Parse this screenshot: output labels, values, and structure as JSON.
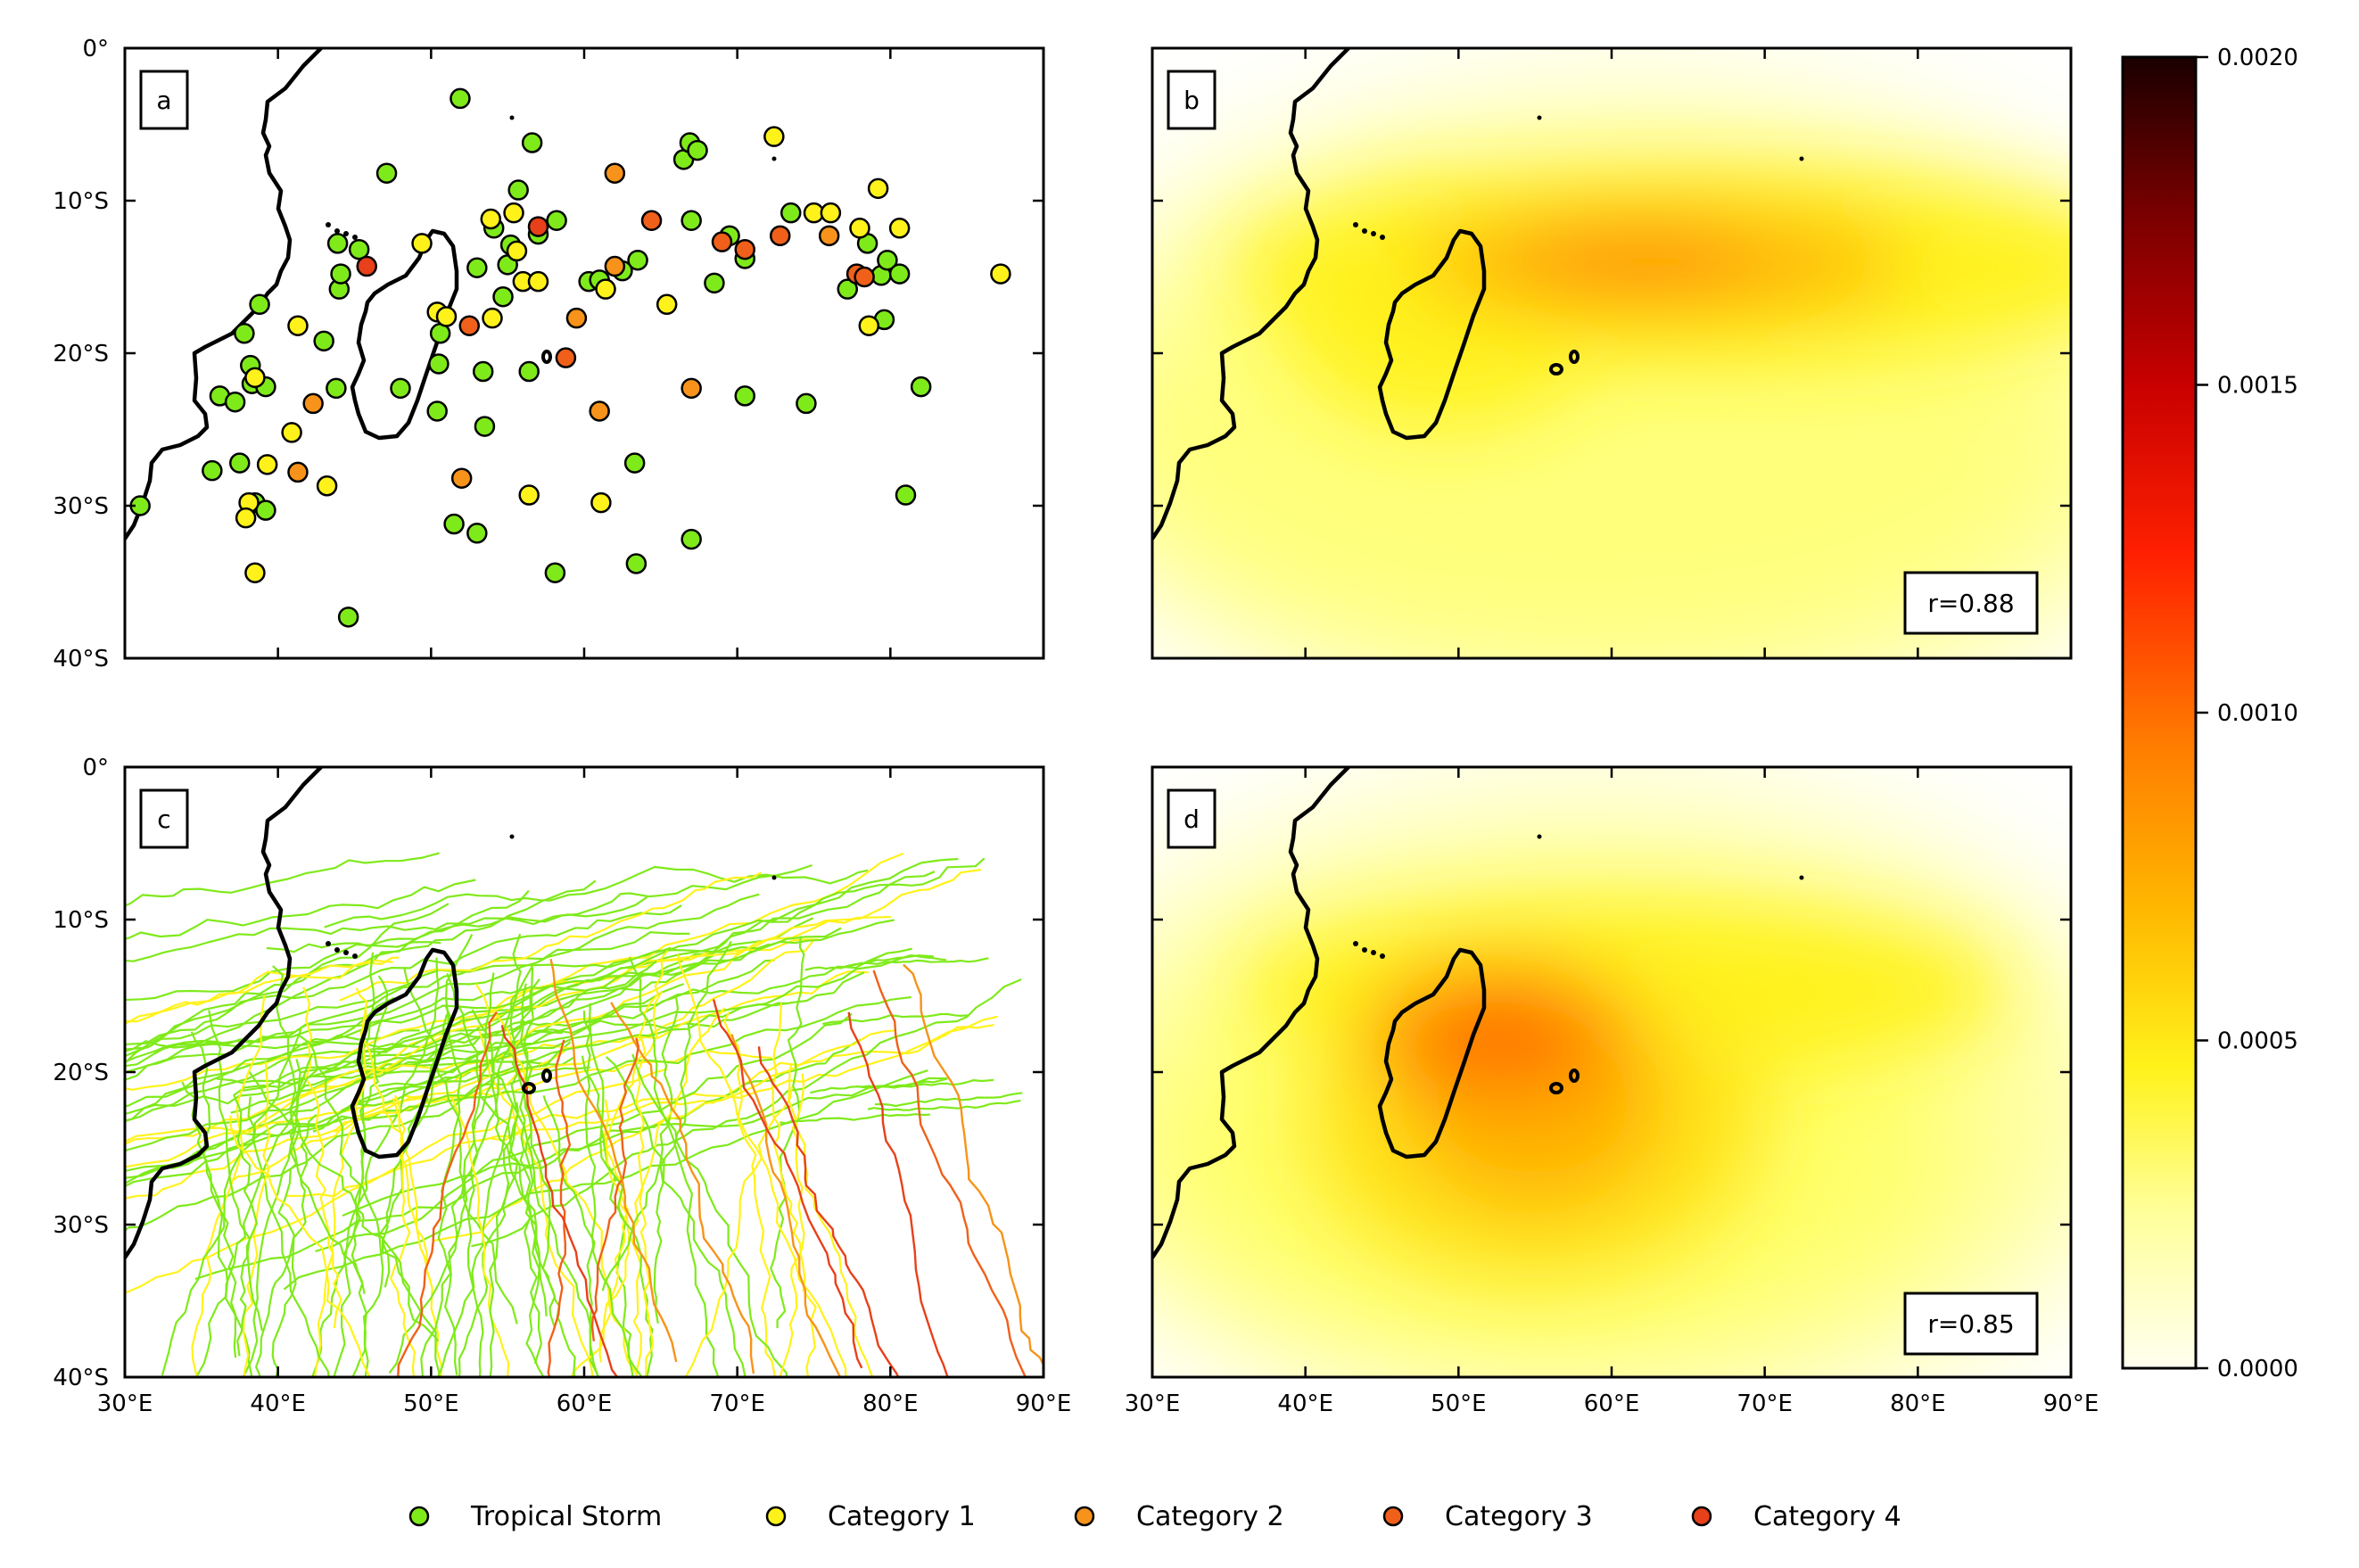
{
  "colors": {
    "tropical_storm": "#7FEA1A",
    "category_1": "#FFF21A",
    "category_2": "#F7931A",
    "category_3": "#F0601A",
    "category_4": "#E8401A",
    "coast": "#000000"
  },
  "axes": {
    "y_labels": [
      "0°",
      "10°S",
      "20°S",
      "30°S",
      "40°S"
    ],
    "x_labels": [
      "30°E",
      "40°E",
      "50°E",
      "60°E",
      "70°E",
      "80°E",
      "90°E"
    ],
    "lon_range": [
      30,
      90
    ],
    "lat_range": [
      0,
      -40
    ]
  },
  "panels": {
    "a": {
      "label": "a"
    },
    "b": {
      "label": "b",
      "r_text": "r=0.88"
    },
    "c": {
      "label": "c"
    },
    "d": {
      "label": "d",
      "r_text": "r=0.85"
    }
  },
  "colorbar": {
    "ticks": [
      "0.0020",
      "0.0015",
      "0.0010",
      "0.0005",
      "0.0000"
    ],
    "range": [
      0,
      0.002
    ]
  },
  "legend": [
    {
      "label": "Tropical Storm",
      "category": "ts"
    },
    {
      "label": "Category 1",
      "category": "c1"
    },
    {
      "label": "Category 2",
      "category": "c2"
    },
    {
      "label": "Category 3",
      "category": "c3"
    },
    {
      "label": "Category 4",
      "category": "c4"
    }
  ],
  "chart_data": {
    "type": "scatter",
    "points_lon_lat_cat": [
      [
        31,
        -30,
        "ts"
      ],
      [
        35.7,
        -27.7,
        "ts"
      ],
      [
        36.2,
        -22.8,
        "ts"
      ],
      [
        37.2,
        -23.2,
        "ts"
      ],
      [
        37.5,
        -27.2,
        "ts"
      ],
      [
        37.8,
        -18.7,
        "ts"
      ],
      [
        38.2,
        -20.8,
        "ts"
      ],
      [
        38.3,
        -22,
        "ts"
      ],
      [
        38.5,
        -29.8,
        "ts"
      ],
      [
        38.8,
        -16.8,
        "ts"
      ],
      [
        39.2,
        -30.3,
        "ts"
      ],
      [
        43.9,
        -12.8,
        "ts"
      ],
      [
        44,
        -15.8,
        "ts"
      ],
      [
        44.1,
        -14.8,
        "ts"
      ],
      [
        44.6,
        -37.3,
        "ts"
      ],
      [
        45.3,
        -13.2,
        "ts"
      ],
      [
        47.1,
        -8.2,
        "ts"
      ],
      [
        48,
        -22.3,
        "ts"
      ],
      [
        50.5,
        -20.7,
        "ts"
      ],
      [
        50.4,
        -23.8,
        "ts"
      ],
      [
        51.5,
        -31.2,
        "ts"
      ],
      [
        51.9,
        -3.3,
        "ts"
      ],
      [
        53,
        -31.8,
        "ts"
      ],
      [
        53.5,
        -24.8,
        "ts"
      ],
      [
        53.4,
        -21.2,
        "ts"
      ],
      [
        55.7,
        -9.3,
        "ts"
      ],
      [
        55.2,
        -12.9,
        "ts"
      ],
      [
        56.6,
        -6.2,
        "ts"
      ],
      [
        56.4,
        -21.2,
        "ts"
      ],
      [
        58.1,
        -34.4,
        "ts"
      ],
      [
        58.2,
        -11.3,
        "ts"
      ],
      [
        60.3,
        -15.3,
        "ts"
      ],
      [
        63.3,
        -27.2,
        "ts"
      ],
      [
        63.4,
        -33.8,
        "ts"
      ],
      [
        63.5,
        -13.9,
        "ts"
      ],
      [
        66.5,
        -7.3,
        "ts"
      ],
      [
        66.9,
        -6.2,
        "ts"
      ],
      [
        67.4,
        -6.7,
        "ts"
      ],
      [
        67,
        -11.3,
        "ts"
      ],
      [
        67,
        -32.2,
        "ts"
      ],
      [
        68.5,
        -15.4,
        "ts"
      ],
      [
        69.5,
        -12.3,
        "ts"
      ],
      [
        70.5,
        -13.8,
        "ts"
      ],
      [
        70.5,
        -22.8,
        "ts"
      ],
      [
        73.5,
        -10.8,
        "ts"
      ],
      [
        74.5,
        -23.3,
        "ts"
      ],
      [
        77.2,
        -15.8,
        "ts"
      ],
      [
        78.5,
        -12.8,
        "ts"
      ],
      [
        79.4,
        -14.9,
        "ts"
      ],
      [
        79.6,
        -17.8,
        "ts"
      ],
      [
        79.8,
        -13.9,
        "ts"
      ],
      [
        80.6,
        -14.8,
        "ts"
      ],
      [
        81,
        -29.3,
        "ts"
      ],
      [
        82,
        -22.2,
        "ts"
      ],
      [
        39.2,
        -22.2,
        "ts"
      ],
      [
        43.8,
        -22.3,
        "ts"
      ],
      [
        43.0,
        -19.2,
        "ts"
      ],
      [
        50.6,
        -18.7,
        "ts"
      ],
      [
        53,
        -14.4,
        "ts"
      ],
      [
        54.7,
        -16.3,
        "ts"
      ],
      [
        54.1,
        -11.8,
        "ts"
      ],
      [
        55,
        -14.2,
        "ts"
      ],
      [
        57,
        -12.2,
        "ts"
      ],
      [
        61,
        -15.2,
        "ts"
      ],
      [
        62.5,
        -14.6,
        "ts"
      ],
      [
        38.5,
        -21.6,
        "c1"
      ],
      [
        38.1,
        -29.8,
        "c1"
      ],
      [
        37.9,
        -30.8,
        "c1"
      ],
      [
        38.5,
        -34.4,
        "c1"
      ],
      [
        39.3,
        -27.3,
        "c1"
      ],
      [
        40.9,
        -25.2,
        "c1"
      ],
      [
        41.3,
        -18.2,
        "c1"
      ],
      [
        43.2,
        -28.7,
        "c1"
      ],
      [
        49.4,
        -12.8,
        "c1"
      ],
      [
        50.4,
        -17.3,
        "c1"
      ],
      [
        51,
        -17.6,
        "c1"
      ],
      [
        54,
        -17.7,
        "c1"
      ],
      [
        53.9,
        -11.2,
        "c1"
      ],
      [
        55.4,
        -10.8,
        "c1"
      ],
      [
        55.6,
        -13.3,
        "c1"
      ],
      [
        56,
        -15.3,
        "c1"
      ],
      [
        57,
        -15.3,
        "c1"
      ],
      [
        56.4,
        -29.3,
        "c1"
      ],
      [
        61.1,
        -29.8,
        "c1"
      ],
      [
        61.4,
        -15.8,
        "c1"
      ],
      [
        65.4,
        -16.8,
        "c1"
      ],
      [
        72.4,
        -5.8,
        "c1"
      ],
      [
        75,
        -10.8,
        "c1"
      ],
      [
        76.1,
        -10.8,
        "c1"
      ],
      [
        78,
        -11.8,
        "c1"
      ],
      [
        78.6,
        -18.2,
        "c1"
      ],
      [
        79.2,
        -9.2,
        "c1"
      ],
      [
        80.6,
        -11.8,
        "c1"
      ],
      [
        87.2,
        -14.8,
        "c1"
      ],
      [
        41.3,
        -27.8,
        "c2"
      ],
      [
        42.3,
        -23.3,
        "c2"
      ],
      [
        52,
        -28.2,
        "c2"
      ],
      [
        59.5,
        -17.7,
        "c2"
      ],
      [
        61,
        -23.8,
        "c2"
      ],
      [
        62,
        -8.2,
        "c2"
      ],
      [
        67,
        -22.3,
        "c2"
      ],
      [
        76,
        -12.3,
        "c2"
      ],
      [
        62,
        -14.3,
        "c2"
      ],
      [
        52.5,
        -18.2,
        "c3"
      ],
      [
        58.8,
        -20.3,
        "c3"
      ],
      [
        64.4,
        -11.3,
        "c3"
      ],
      [
        69,
        -12.7,
        "c3"
      ],
      [
        70.5,
        -13.2,
        "c3"
      ],
      [
        72.8,
        -12.3,
        "c3"
      ],
      [
        77.8,
        -14.8,
        "c3"
      ],
      [
        78.3,
        -15.0,
        "c3"
      ],
      [
        45.8,
        -14.3,
        "c4"
      ],
      [
        57,
        -11.7,
        "c4"
      ]
    ],
    "density_panel_b": {
      "r": 0.88,
      "peak_lon_lat": [
        61,
        -14.2
      ],
      "peak_value": 0.00085
    },
    "density_panel_d": {
      "r": 0.85,
      "peak_lon_lat": [
        54,
        -17.5
      ],
      "peak_value": 0.00095
    }
  }
}
